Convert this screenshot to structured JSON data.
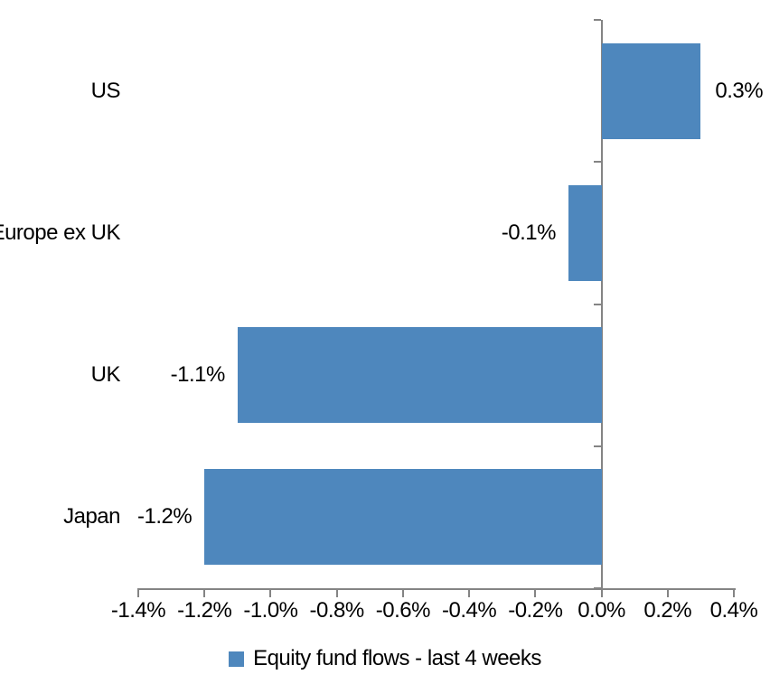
{
  "chart_data": {
    "type": "bar",
    "orientation": "horizontal",
    "title": "",
    "categories": [
      "US",
      "Europe ex UK",
      "UK",
      "Japan"
    ],
    "series": [
      {
        "name": "Equity fund flows - last 4 weeks",
        "values": [
          0.3,
          -0.1,
          -1.1,
          -1.2
        ],
        "data_labels": [
          "0.3%",
          "-0.1%",
          "-1.1%",
          "-1.2%"
        ],
        "color": "#4E87BD"
      }
    ],
    "xlim": [
      -1.4,
      0.4
    ],
    "x_ticks": [
      {
        "value": -1.4,
        "label": "-1.4%"
      },
      {
        "value": -1.2,
        "label": "-1.2%"
      },
      {
        "value": -1.0,
        "label": "-1.0%"
      },
      {
        "value": -0.8,
        "label": "-0.8%"
      },
      {
        "value": -0.6,
        "label": "-0.6%"
      },
      {
        "value": -0.4,
        "label": "-0.4%"
      },
      {
        "value": -0.2,
        "label": "-0.2%"
      },
      {
        "value": 0.0,
        "label": "0.0%"
      },
      {
        "value": 0.2,
        "label": "0.2%"
      },
      {
        "value": 0.4,
        "label": "0.4%"
      }
    ],
    "grid": false,
    "legend_position": "bottom",
    "colors": {
      "bar": "#4E87BD",
      "axis": "#848484",
      "text": "#000000",
      "background": "#FFFFFF"
    }
  }
}
